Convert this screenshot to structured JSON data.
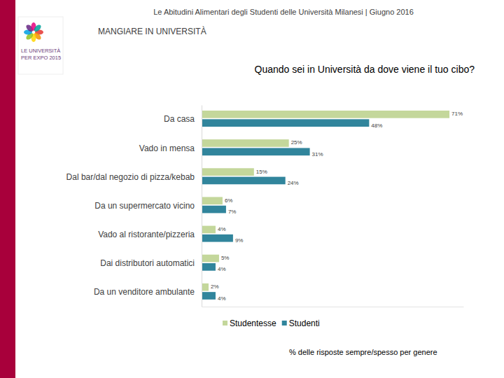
{
  "chart_data": {
    "type": "bar",
    "orientation": "horizontal",
    "title": "Quando sei in Università da dove viene il tuo cibo?",
    "subtitle": "MANGIARE IN UNIVERSITÀ",
    "annotations": [
      "Le Abitudini Alimentari degli Studenti delle Università Milanesi | Giugno 2016",
      "% delle risposte sempre/spesso per genere",
      "LE UNIVERSITÀ",
      "PER EXPO 2015"
    ],
    "categories": [
      "Da casa",
      "Vado in mensa",
      "Dal bar/dal negozio di pizza/kebab",
      "Da un supermercato vicino",
      "Vado al ristorante/pizzeria",
      "Dai distributori automatici",
      "Da un venditore ambulante"
    ],
    "series": [
      {
        "name": "Studentesse",
        "color": "#c4d79b",
        "values": [
          71,
          25,
          15,
          6,
          4,
          5,
          2
        ],
        "value_labels": [
          "71%",
          "25%",
          "15%",
          "6%",
          "4%",
          "5%",
          "2%"
        ]
      },
      {
        "name": "Studenti",
        "color": "#31859c",
        "values": [
          48,
          31,
          24,
          7,
          9,
          4,
          4
        ],
        "value_labels": [
          "48%",
          "31%",
          "24%",
          "7%",
          "9%",
          "4%",
          "4%"
        ]
      }
    ],
    "xlim": [
      0,
      75
    ],
    "data_labels": true,
    "tick_labels": "y",
    "grid": false,
    "legend": "bottom"
  }
}
